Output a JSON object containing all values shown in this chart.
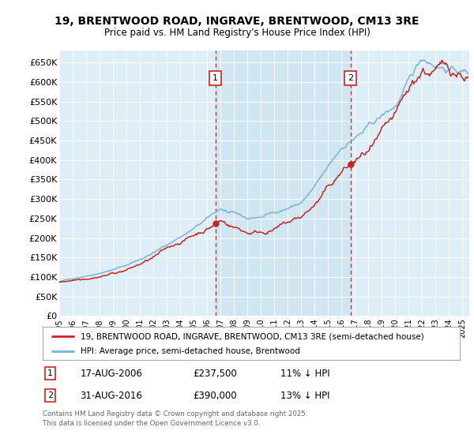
{
  "title_line1": "19, BRENTWOOD ROAD, INGRAVE, BRENTWOOD, CM13 3RE",
  "title_line2": "Price paid vs. HM Land Registry's House Price Index (HPI)",
  "ylabel_ticks": [
    "£0",
    "£50K",
    "£100K",
    "£150K",
    "£200K",
    "£250K",
    "£300K",
    "£350K",
    "£400K",
    "£450K",
    "£500K",
    "£550K",
    "£600K",
    "£650K"
  ],
  "ytick_values": [
    0,
    50000,
    100000,
    150000,
    200000,
    250000,
    300000,
    350000,
    400000,
    450000,
    500000,
    550000,
    600000,
    650000
  ],
  "ylim": [
    0,
    680000
  ],
  "xlim_start": 1995.0,
  "xlim_end": 2025.5,
  "hpi_color": "#7ab3d4",
  "hpi_fill_color": "#ddeef7",
  "price_color": "#cc2222",
  "marker1_date": 2006.625,
  "marker1_price": 237500,
  "marker2_date": 2016.667,
  "marker2_price": 390000,
  "legend_label1": "19, BRENTWOOD ROAD, INGRAVE, BRENTWOOD, CM13 3RE (semi-detached house)",
  "legend_label2": "HPI: Average price, semi-detached house, Brentwood",
  "footer": "Contains HM Land Registry data © Crown copyright and database right 2025.\nThis data is licensed under the Open Government Licence v3.0.",
  "background_color": "#ddeef7",
  "plot_bg_color": "#ddeef7"
}
